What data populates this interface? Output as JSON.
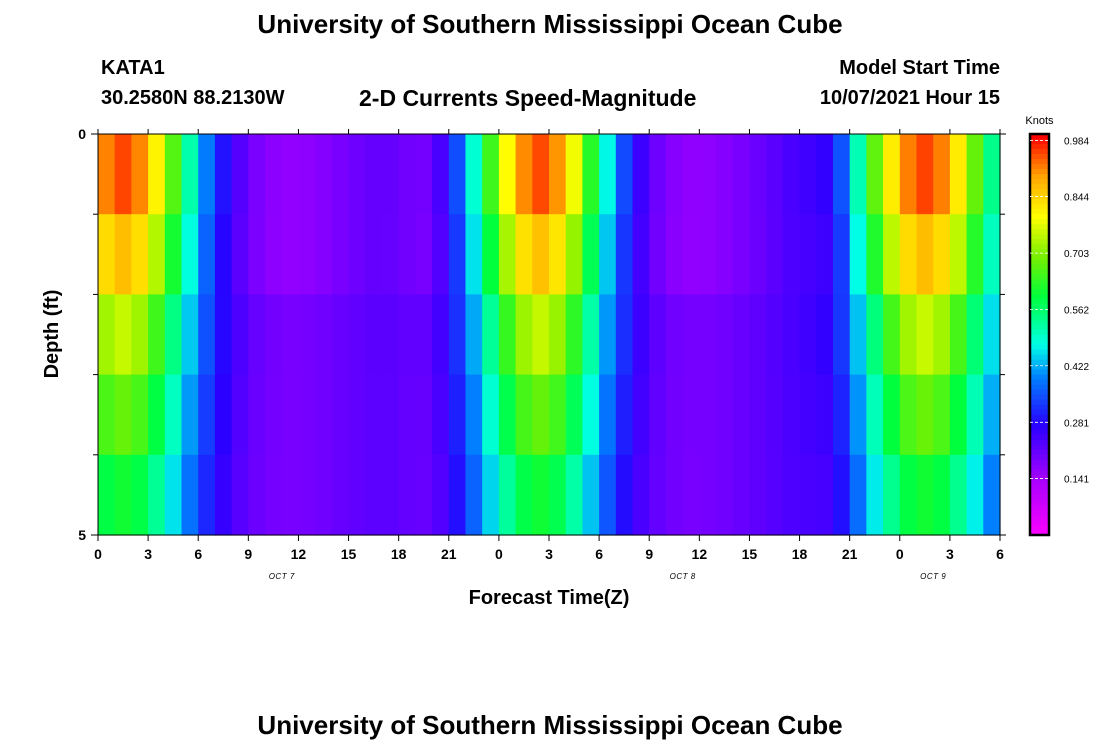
{
  "header": {
    "title": "University of Southern Mississippi Ocean Cube",
    "footer_title": "University of Southern Mississippi Ocean Cube",
    "station": "KATA1",
    "coords": "30.2580N  88.2130W",
    "subtitle": "2-D Currents Speed-Magnitude",
    "model_label": "Model Start Time",
    "model_time": "10/07/2021 Hour 15"
  },
  "chart_data": {
    "type": "heatmap",
    "title": "2-D Currents Speed-Magnitude",
    "xlabel": "Forecast Time(Z)",
    "ylabel": "Depth (ft)",
    "x_tick_labels": [
      "0",
      "3",
      "6",
      "9",
      "12",
      "15",
      "18",
      "21",
      "0",
      "3",
      "6",
      "9",
      "12",
      "15",
      "18",
      "21",
      "0",
      "3",
      "6"
    ],
    "x_day_labels": [
      {
        "label": "OCT 7",
        "at_hour": 11
      },
      {
        "label": "OCT 8",
        "at_hour": 35
      },
      {
        "label": "OCT 9",
        "at_hour": 50
      }
    ],
    "x_range_hours": [
      0,
      54
    ],
    "y_range": [
      0,
      5
    ],
    "y_tick_labels": [
      "0",
      "5"
    ],
    "y_minor_ticks": [
      1,
      2,
      3,
      4
    ],
    "colorbar": {
      "unit": "Knots",
      "min": 0.0,
      "max": 1.0,
      "tick_labels": [
        "0.984",
        "0.844",
        "0.703",
        "0.562",
        "0.422",
        "0.281",
        "0.141"
      ],
      "tick_values": [
        0.984,
        0.844,
        0.703,
        0.562,
        0.422,
        0.281,
        0.141
      ]
    },
    "depth_layers": 5,
    "time_steps": 54,
    "grid": false
  }
}
